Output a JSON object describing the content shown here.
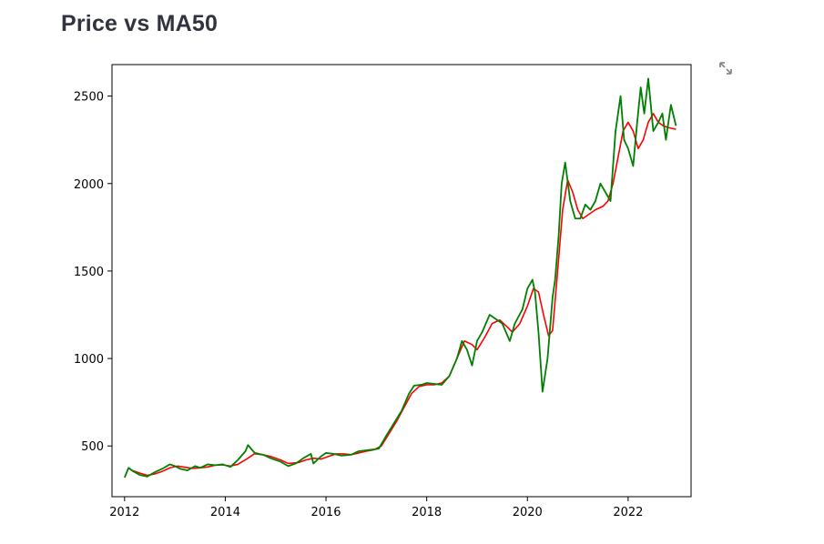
{
  "page": {
    "title": "Price vs MA50",
    "expand_icon": "fullscreen-expand-icon"
  },
  "chart_data": {
    "type": "line",
    "title": "",
    "xlabel": "",
    "ylabel": "",
    "xlim": [
      2011.75,
      2023.25
    ],
    "ylim": [
      210,
      2680
    ],
    "xticks": [
      2012,
      2014,
      2016,
      2018,
      2020,
      2022
    ],
    "yticks": [
      500,
      1000,
      1500,
      2000,
      2500
    ],
    "grid": false,
    "legend": "none",
    "series": [
      {
        "color": "#008000",
        "x": [
          2012.0,
          2012.08,
          2012.17,
          2012.3,
          2012.45,
          2012.6,
          2012.75,
          2012.9,
          2013.0,
          2013.1,
          2013.25,
          2013.4,
          2013.5,
          2013.65,
          2013.8,
          2013.95,
          2014.1,
          2014.25,
          2014.4,
          2014.45,
          2014.6,
          2014.75,
          2014.9,
          2015.1,
          2015.25,
          2015.4,
          2015.55,
          2015.7,
          2015.75,
          2015.9,
          2016.0,
          2016.15,
          2016.3,
          2016.5,
          2016.65,
          2016.8,
          2016.95,
          2017.05,
          2017.2,
          2017.35,
          2017.5,
          2017.65,
          2017.75,
          2017.9,
          2018.0,
          2018.15,
          2018.3,
          2018.45,
          2018.6,
          2018.7,
          2018.8,
          2018.9,
          2019.0,
          2019.1,
          2019.25,
          2019.4,
          2019.5,
          2019.65,
          2019.75,
          2019.9,
          2020.0,
          2020.1,
          2020.15,
          2020.22,
          2020.3,
          2020.4,
          2020.5,
          2020.55,
          2020.62,
          2020.68,
          2020.75,
          2020.85,
          2020.95,
          2021.05,
          2021.15,
          2021.25,
          2021.35,
          2021.45,
          2021.55,
          2021.65,
          2021.75,
          2021.85,
          2021.92,
          2022.0,
          2022.1,
          2022.18,
          2022.25,
          2022.32,
          2022.4,
          2022.5,
          2022.6,
          2022.68,
          2022.75,
          2022.85,
          2022.95
        ],
        "values": [
          320,
          375,
          355,
          335,
          325,
          350,
          370,
          395,
          385,
          370,
          360,
          385,
          375,
          395,
          390,
          395,
          380,
          420,
          470,
          505,
          455,
          450,
          430,
          410,
          385,
          400,
          430,
          455,
          400,
          440,
          460,
          455,
          445,
          450,
          470,
          475,
          480,
          485,
          560,
          630,
          700,
          800,
          845,
          850,
          860,
          855,
          850,
          900,
          1000,
          1100,
          1050,
          960,
          1100,
          1150,
          1250,
          1220,
          1200,
          1100,
          1200,
          1280,
          1400,
          1450,
          1380,
          1150,
          810,
          1000,
          1350,
          1450,
          1700,
          2000,
          2120,
          1900,
          1800,
          1800,
          1880,
          1850,
          1900,
          2000,
          1950,
          1900,
          2300,
          2500,
          2250,
          2200,
          2100,
          2350,
          2550,
          2400,
          2600,
          2300,
          2350,
          2400,
          2250,
          2450,
          2330
        ]
      },
      {
        "color": "#ff0000",
        "x": [
          2012.15,
          2012.3,
          2012.45,
          2012.6,
          2012.75,
          2012.9,
          2013.05,
          2013.2,
          2013.35,
          2013.5,
          2013.65,
          2013.8,
          2013.95,
          2014.1,
          2014.25,
          2014.45,
          2014.6,
          2014.75,
          2014.9,
          2015.1,
          2015.25,
          2015.45,
          2015.6,
          2015.75,
          2015.9,
          2016.05,
          2016.2,
          2016.35,
          2016.5,
          2016.65,
          2016.8,
          2016.95,
          2017.1,
          2017.25,
          2017.4,
          2017.55,
          2017.7,
          2017.85,
          2018.0,
          2018.15,
          2018.3,
          2018.45,
          2018.6,
          2018.75,
          2018.9,
          2019.0,
          2019.15,
          2019.3,
          2019.45,
          2019.6,
          2019.7,
          2019.85,
          2020.0,
          2020.12,
          2020.22,
          2020.32,
          2020.42,
          2020.5,
          2020.6,
          2020.7,
          2020.8,
          2020.9,
          2021.0,
          2021.1,
          2021.2,
          2021.35,
          2021.5,
          2021.6,
          2021.7,
          2021.8,
          2021.9,
          2022.0,
          2022.1,
          2022.2,
          2022.3,
          2022.4,
          2022.5,
          2022.6,
          2022.7,
          2022.8,
          2022.95
        ],
        "values": [
          360,
          345,
          332,
          340,
          355,
          375,
          385,
          378,
          372,
          375,
          380,
          390,
          392,
          385,
          395,
          430,
          460,
          450,
          440,
          420,
          400,
          405,
          420,
          430,
          425,
          440,
          455,
          455,
          450,
          460,
          470,
          478,
          500,
          570,
          640,
          720,
          800,
          840,
          850,
          850,
          860,
          900,
          1000,
          1100,
          1080,
          1050,
          1120,
          1200,
          1220,
          1180,
          1150,
          1200,
          1300,
          1400,
          1380,
          1250,
          1130,
          1160,
          1500,
          1850,
          2020,
          1950,
          1850,
          1800,
          1820,
          1850,
          1870,
          1900,
          2000,
          2150,
          2300,
          2350,
          2300,
          2200,
          2250,
          2350,
          2400,
          2350,
          2330,
          2320,
          2310
        ]
      }
    ]
  }
}
